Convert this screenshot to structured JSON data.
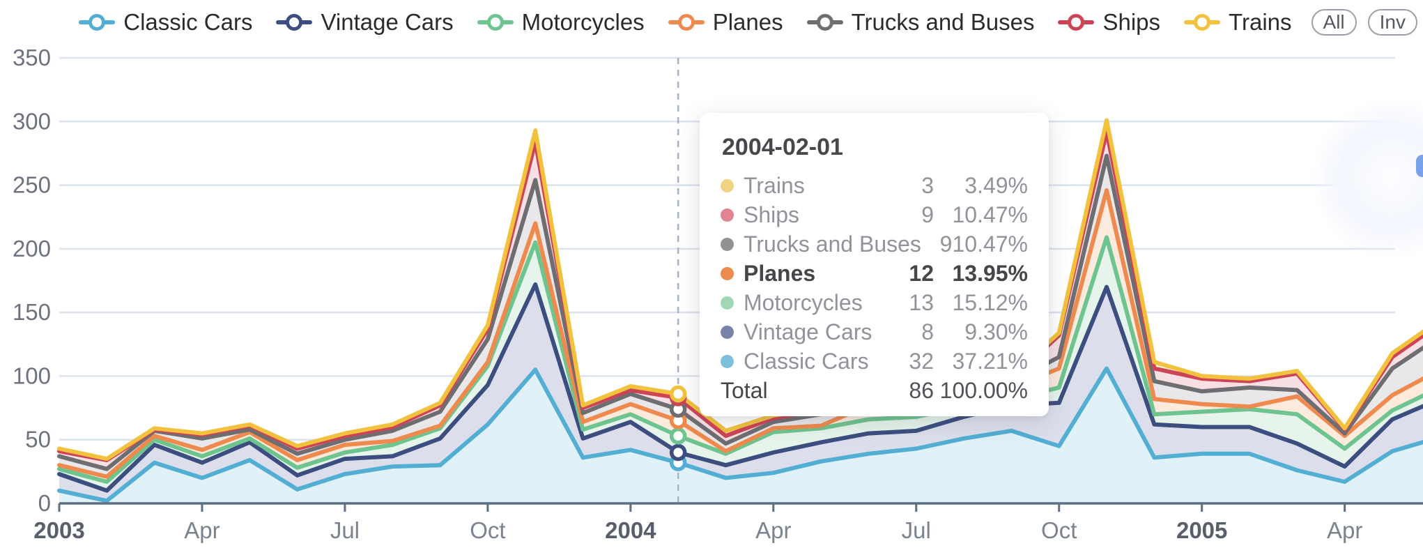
{
  "legend": {
    "items": [
      {
        "label": "Classic Cars",
        "color": "#52aed2"
      },
      {
        "label": "Vintage Cars",
        "color": "#3c4e7f"
      },
      {
        "label": "Motorcycles",
        "color": "#6ec48e"
      },
      {
        "label": "Planes",
        "color": "#ef8a4e"
      },
      {
        "label": "Trucks and Buses",
        "color": "#6e6e72"
      },
      {
        "label": "Ships",
        "color": "#cc4455"
      },
      {
        "label": "Trains",
        "color": "#f2c23e"
      }
    ],
    "buttons": [
      {
        "label": "All"
      },
      {
        "label": "Inv"
      }
    ]
  },
  "tooltip": {
    "title": "2004-02-01",
    "rows": [
      {
        "name": "Trains",
        "value": "3",
        "percent": "3.49%",
        "dot": "#f0d383",
        "bold": false
      },
      {
        "name": "Ships",
        "value": "9",
        "percent": "10.47%",
        "dot": "#e08492",
        "bold": false
      },
      {
        "name": "Trucks and Buses",
        "value": "9",
        "percent": "10.47%",
        "dot": "#929295",
        "bold": false
      },
      {
        "name": "Planes",
        "value": "12",
        "percent": "13.95%",
        "dot": "#ef8a4e",
        "bold": true
      },
      {
        "name": "Motorcycles",
        "value": "13",
        "percent": "15.12%",
        "dot": "#a0d7b4",
        "bold": false
      },
      {
        "name": "Vintage Cars",
        "value": "8",
        "percent": "9.30%",
        "dot": "#7883aa",
        "bold": false
      },
      {
        "name": "Classic Cars",
        "value": "32",
        "percent": "37.21%",
        "dot": "#7cc0dc",
        "bold": false
      }
    ],
    "total": {
      "name": "Total",
      "value": "86",
      "percent": "100.00%"
    }
  },
  "chart_data": {
    "type": "area",
    "stacked": true,
    "title": "",
    "xlabel": "",
    "ylabel": "",
    "ylim": [
      0,
      350
    ],
    "y_ticks": [
      0,
      50,
      100,
      150,
      200,
      250,
      300,
      350
    ],
    "grid": true,
    "legend_position": "top-right",
    "x": [
      "2003-01",
      "2003-02",
      "2003-03",
      "2003-04",
      "2003-05",
      "2003-06",
      "2003-07",
      "2003-08",
      "2003-09",
      "2003-10",
      "2003-11",
      "2003-12",
      "2004-01",
      "2004-02",
      "2004-03",
      "2004-04",
      "2004-05",
      "2004-06",
      "2004-07",
      "2004-08",
      "2004-09",
      "2004-10",
      "2004-11",
      "2004-12",
      "2005-01",
      "2005-02",
      "2005-03",
      "2005-04",
      "2005-05",
      "2005-06"
    ],
    "x_axis_ticks": [
      {
        "label": "2003",
        "month_index": 0,
        "bold": true
      },
      {
        "label": "Apr",
        "month_index": 3,
        "bold": false
      },
      {
        "label": "Jul",
        "month_index": 6,
        "bold": false
      },
      {
        "label": "Oct",
        "month_index": 9,
        "bold": false
      },
      {
        "label": "2004",
        "month_index": 12,
        "bold": true
      },
      {
        "label": "Apr",
        "month_index": 15,
        "bold": false
      },
      {
        "label": "Jul",
        "month_index": 18,
        "bold": false
      },
      {
        "label": "Oct",
        "month_index": 21,
        "bold": false
      },
      {
        "label": "2005",
        "month_index": 24,
        "bold": true
      },
      {
        "label": "Apr",
        "month_index": 27,
        "bold": false
      }
    ],
    "hover": {
      "date": "2004-02-01",
      "month_index": 13
    },
    "series": [
      {
        "name": "Classic Cars",
        "color": "#52aed2",
        "fill": "#e1f1f8",
        "values": [
          10,
          2,
          32,
          20,
          34,
          11,
          23,
          29,
          30,
          62,
          105,
          36,
          42,
          32,
          20,
          24,
          33,
          39,
          43,
          51,
          57,
          45,
          106,
          36,
          39,
          39,
          26,
          17,
          41,
          52
        ]
      },
      {
        "name": "Vintage Cars",
        "color": "#3c4e7f",
        "fill": "#dcdfeb",
        "values": [
          13,
          8,
          14,
          12,
          14,
          11,
          12,
          8,
          21,
          31,
          67,
          15,
          22,
          8,
          10,
          16,
          15,
          16,
          14,
          17,
          20,
          34,
          64,
          26,
          21,
          21,
          21,
          12,
          25,
          30
        ]
      },
      {
        "name": "Motorcycles",
        "color": "#6ec48e",
        "fill": "#e6f4eb",
        "values": [
          4,
          7,
          4,
          5,
          3,
          6,
          5,
          9,
          8,
          15,
          33,
          7,
          6,
          13,
          9,
          16,
          11,
          11,
          11,
          8,
          5,
          12,
          39,
          8,
          12,
          14,
          23,
          14,
          7,
          9
        ]
      },
      {
        "name": "Planes",
        "color": "#ef8a4e",
        "fill": "#fcebdd",
        "values": [
          3,
          4,
          3,
          5,
          5,
          6,
          6,
          3,
          2,
          3,
          15,
          6,
          8,
          12,
          2,
          3,
          2,
          11,
          13,
          10,
          9,
          15,
          37,
          12,
          6,
          2,
          14,
          10,
          12,
          14
        ]
      },
      {
        "name": "Trucks and Buses",
        "color": "#6e6e72",
        "fill": "#e8e8ea",
        "values": [
          7,
          6,
          4,
          9,
          2,
          5,
          4,
          8,
          11,
          18,
          34,
          7,
          8,
          9,
          6,
          5,
          9,
          5,
          5,
          4,
          4,
          9,
          27,
          14,
          10,
          15,
          5,
          2,
          21,
          26
        ]
      },
      {
        "name": "Ships",
        "color": "#cc4455",
        "fill": "#f7dfe4",
        "values": [
          4,
          7,
          1,
          3,
          3,
          4,
          3,
          3,
          5,
          8,
          30,
          4,
          3,
          9,
          6,
          3,
          3,
          4,
          4,
          4,
          3,
          17,
          19,
          10,
          10,
          5,
          13,
          3,
          9,
          10
        ]
      },
      {
        "name": "Trains",
        "color": "#f2c23e",
        "fill": "#fcf3d2",
        "values": [
          2,
          1,
          1,
          1,
          1,
          2,
          2,
          2,
          2,
          3,
          9,
          2,
          3,
          3,
          4,
          2,
          2,
          1,
          2,
          2,
          2,
          2,
          9,
          5,
          2,
          2,
          2,
          1,
          3,
          3
        ]
      }
    ]
  },
  "style": {
    "grid_color": "#dde2f0",
    "axis_color": "#5d7083",
    "y_label_color": "#6d727e",
    "x_label_color": "#7b8390",
    "x_label_bold_color": "#585f6a",
    "hover_line_color": "#a9b4c4"
  }
}
